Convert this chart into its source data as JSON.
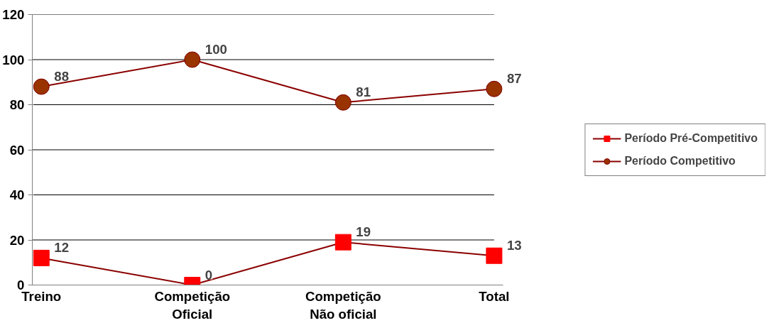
{
  "chart_data": {
    "type": "line",
    "categories": [
      "Treino",
      "Competição\nOficial",
      "Competição\nNão oficial",
      "Total"
    ],
    "series": [
      {
        "name": "Período Pré-Competitivo",
        "color": "#ff0000",
        "marker": "square",
        "values": [
          12,
          0,
          19,
          13
        ]
      },
      {
        "name": "Período Competitivo",
        "color": "#993300",
        "marker": "circle",
        "values": [
          88,
          100,
          81,
          87
        ]
      }
    ],
    "ylim": [
      0,
      120
    ],
    "yticks": [
      0,
      20,
      40,
      60,
      80,
      100,
      120
    ],
    "grid": "y",
    "legend": "right",
    "data_labels": true
  }
}
